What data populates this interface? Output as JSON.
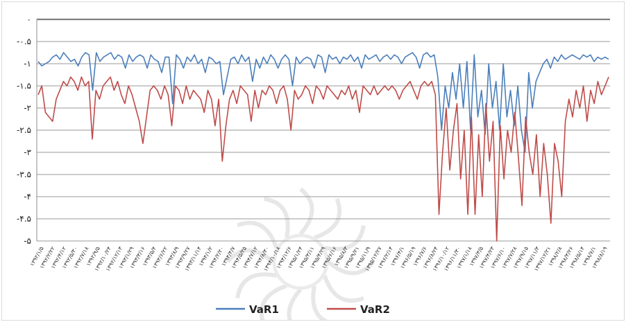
{
  "chart_data": {
    "type": "line",
    "title": "",
    "xlabel": "",
    "ylabel": "",
    "ylim": [
      -5,
      0
    ],
    "yticks": [
      0,
      -0.5,
      -1,
      -1.5,
      -2,
      -2.5,
      -3,
      -3.5,
      -4,
      -4.5,
      -5
    ],
    "ytick_labels": [
      "۰",
      "-۰.۵",
      "-۱",
      "-۱.۵",
      "-۲",
      "-۲.۵",
      "-۳",
      "-۳.۵",
      "-۴",
      "-۴.۵",
      "-۵"
    ],
    "grid": true,
    "legend_position": "bottom",
    "x_ticks": [
      "۱۳۹۲/۱/۵",
      "۱۳۹۲/۲/۲۲",
      "۱۳۹۲/۴/۱۲",
      "۱۳۹۲/۵/۳۰",
      "۱۳۹۲/۷/۱۸",
      "۱۳۹۲/۹/۵",
      "۱۳۹۲/۱۰/۲۴",
      "۱۳۹۲/۱۲/۱۳",
      "۱۳۹۳/۱/۲۹",
      "۱۳۹۳/۳/۱۶",
      "۱۳۹۳/۵/۴",
      "۱۳۹۳/۶/۲۲",
      "۱۳۹۳/۸/۹",
      "۱۳۹۳/۹/۲۷",
      "۱۳۹۳/۱۱/۱۴",
      "۱۳۹۴/۱/۲",
      "۱۳۹۴/۲/۲۰",
      "۱۳۹۴/۴/۷",
      "۱۳۹۴/۵/۲۵",
      "۱۳۹۴/۷/۱۲",
      "۱۳۹۴/۸/۳۰",
      "۱۳۹۴/۱۰/۱۸",
      "۱۳۹۴/۱۲/۶",
      "۱۳۹۵/۱/۲۴",
      "۱۳۹۵/۳/۱۱",
      "۱۳۹۵/۴/۲۹",
      "۱۳۹۵/۶/۱۶",
      "۱۳۹۵/۸/۳",
      "۱۳۹۵/۹/۲۱",
      "۱۳۹۵/۱۱/۹",
      "۱۳۹۵/۱۲/۲۷",
      "۱۳۹۶/۲/۱۴",
      "۱۳۹۶/۴/۱",
      "۱۳۹۶/۵/۱۹",
      "۱۳۹۶/۷/۶",
      "۱۳۹۶/۸/۲۴",
      "۱۳۹۶/۱۰/۱۲",
      "۱۳۹۶/۱۱/۳۰",
      "۱۳۹۷/۱/۱۸",
      "۱۳۹۷/۳/۵",
      "۱۳۹۷/۴/۲۳",
      "۱۳۹۷/۶/۱۰",
      "۱۳۹۷/۷/۲۸",
      "۱۳۹۷/۹/۱۵",
      "۱۳۹۷/۱۱/۳",
      "۱۳۹۷/۱۲/۲۱",
      "۱۳۹۸/۲/۸",
      "۱۳۹۸/۳/۲۶",
      "۱۳۹۸/۵/۱۴",
      "۱۳۹۸/۷/۱",
      "۱۳۹۸/۸/۱۹"
    ],
    "series": [
      {
        "name": "VaR1",
        "color": "#4a7ebb",
        "values": [
          -0.95,
          -1.05,
          -1.0,
          -0.95,
          -0.85,
          -0.8,
          -0.9,
          -0.75,
          -0.85,
          -0.95,
          -0.9,
          -1.05,
          -0.85,
          -0.75,
          -0.8,
          -1.6,
          -0.75,
          -0.95,
          -0.85,
          -0.8,
          -0.75,
          -0.9,
          -0.8,
          -0.85,
          -1.1,
          -0.8,
          -0.95,
          -0.85,
          -0.8,
          -0.85,
          -1.1,
          -0.8,
          -0.9,
          -0.95,
          -1.2,
          -0.85,
          -0.85,
          -1.9,
          -0.8,
          -0.9,
          -1.1,
          -0.85,
          -0.95,
          -0.8,
          -1.0,
          -0.9,
          -1.2,
          -0.85,
          -0.9,
          -1.0,
          -0.95,
          -1.7,
          -1.3,
          -0.9,
          -0.85,
          -1.0,
          -0.8,
          -0.95,
          -0.85,
          -1.4,
          -0.9,
          -1.1,
          -0.85,
          -1.0,
          -0.8,
          -0.9,
          -1.1,
          -0.9,
          -0.8,
          -0.9,
          -1.5,
          -0.85,
          -1.0,
          -0.9,
          -0.85,
          -0.9,
          -1.1,
          -0.8,
          -0.85,
          -1.2,
          -0.8,
          -0.9,
          -0.85,
          -1.0,
          -0.85,
          -0.9,
          -0.8,
          -0.95,
          -0.85,
          -1.1,
          -0.8,
          -0.9,
          -0.85,
          -0.8,
          -0.95,
          -0.85,
          -0.8,
          -0.9,
          -0.8,
          -0.85,
          -1.0,
          -0.85,
          -0.8,
          -0.75,
          -0.85,
          -1.1,
          -0.8,
          -0.75,
          -0.85,
          -0.8,
          -1.3,
          -2.5,
          -1.5,
          -2.0,
          -1.2,
          -1.8,
          -1.0,
          -2.0,
          -0.95,
          -2.5,
          -0.8,
          -2.2,
          -1.6,
          -2.6,
          -1.0,
          -2.0,
          -1.4,
          -2.5,
          -1.0,
          -2.2,
          -1.6,
          -2.4,
          -1.5,
          -2.5,
          -3.0,
          -1.2,
          -2.0,
          -1.4,
          -1.2,
          -1.0,
          -0.9,
          -1.1,
          -0.85,
          -0.95,
          -0.8,
          -0.9,
          -0.85,
          -0.8,
          -0.85,
          -0.9,
          -0.8,
          -0.85,
          -0.8,
          -0.95,
          -0.85,
          -0.9,
          -0.85,
          -0.9
        ]
      },
      {
        "name": "VaR2",
        "color": "#be4b48",
        "values": [
          -1.7,
          -1.5,
          -2.1,
          -2.2,
          -2.3,
          -1.8,
          -1.6,
          -1.4,
          -1.5,
          -1.3,
          -1.4,
          -1.6,
          -1.3,
          -1.5,
          -1.4,
          -2.7,
          -1.6,
          -1.8,
          -1.5,
          -1.4,
          -1.3,
          -1.6,
          -1.4,
          -1.7,
          -1.9,
          -1.5,
          -1.7,
          -2.0,
          -2.3,
          -2.8,
          -2.2,
          -1.6,
          -1.5,
          -1.6,
          -1.8,
          -1.5,
          -1.7,
          -2.4,
          -1.5,
          -1.6,
          -1.9,
          -1.5,
          -1.8,
          -1.6,
          -1.7,
          -1.8,
          -2.1,
          -1.6,
          -1.8,
          -2.4,
          -1.8,
          -3.2,
          -2.4,
          -1.8,
          -1.6,
          -1.9,
          -1.5,
          -1.6,
          -1.7,
          -2.3,
          -1.6,
          -2.0,
          -1.6,
          -1.7,
          -1.5,
          -1.6,
          -1.9,
          -1.6,
          -1.5,
          -1.8,
          -2.5,
          -1.6,
          -1.8,
          -1.7,
          -1.5,
          -1.6,
          -1.9,
          -1.5,
          -1.6,
          -1.8,
          -1.5,
          -1.6,
          -1.7,
          -1.8,
          -1.6,
          -1.7,
          -1.5,
          -1.8,
          -1.6,
          -2.1,
          -1.5,
          -1.6,
          -1.7,
          -1.5,
          -1.7,
          -1.6,
          -1.5,
          -1.6,
          -1.5,
          -1.6,
          -1.8,
          -1.6,
          -1.5,
          -1.4,
          -1.6,
          -1.8,
          -1.5,
          -1.4,
          -1.5,
          -1.4,
          -1.7,
          -4.4,
          -3.0,
          -2.0,
          -3.4,
          -2.5,
          -1.9,
          -3.6,
          -2.5,
          -4.4,
          -2.2,
          -4.4,
          -2.6,
          -4.0,
          -1.9,
          -3.2,
          -2.3,
          -5.0,
          -2.4,
          -3.6,
          -2.5,
          -3.0,
          -2.1,
          -3.1,
          -4.2,
          -2.2,
          -3.0,
          -3.5,
          -2.6,
          -4.0,
          -2.8,
          -3.5,
          -4.6,
          -2.8,
          -3.2,
          -4.0,
          -2.3,
          -1.8,
          -2.2,
          -1.6,
          -2.0,
          -1.5,
          -2.3,
          -1.6,
          -1.9,
          -1.4,
          -1.7,
          -1.5,
          -1.3
        ]
      }
    ]
  },
  "legend": {
    "entries": [
      {
        "label": "VaR1",
        "color": "#4a7ebb"
      },
      {
        "label": "VaR2",
        "color": "#be4b48"
      }
    ]
  }
}
